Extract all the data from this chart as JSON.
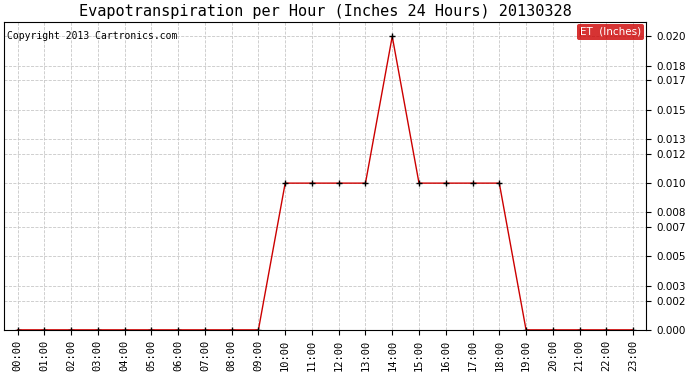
{
  "title": "Evapotranspiration per Hour (Inches 24 Hours) 20130328",
  "copyright": "Copyright 2013 Cartronics.com",
  "legend_label": "ET  (Inches)",
  "legend_bg": "#cc0000",
  "legend_fg": "#ffffff",
  "line_color": "#cc0000",
  "marker_color": "#000000",
  "bg_color": "#ffffff",
  "grid_color": "#c8c8c8",
  "hours": [
    0,
    1,
    2,
    3,
    4,
    5,
    6,
    7,
    8,
    9,
    10,
    11,
    12,
    13,
    14,
    15,
    16,
    17,
    18,
    19,
    20,
    21,
    22,
    23
  ],
  "values": [
    0.0,
    0.0,
    0.0,
    0.0,
    0.0,
    0.0,
    0.0,
    0.0,
    0.0,
    0.0,
    0.01,
    0.01,
    0.01,
    0.01,
    0.02,
    0.01,
    0.01,
    0.01,
    0.01,
    0.0,
    0.0,
    0.0,
    0.0,
    0.0
  ],
  "ylim": [
    0.0,
    0.021
  ],
  "yticks": [
    0.0,
    0.002,
    0.003,
    0.005,
    0.007,
    0.008,
    0.01,
    0.012,
    0.013,
    0.015,
    0.017,
    0.018,
    0.02
  ],
  "title_fontsize": 11,
  "tick_fontsize": 7.5,
  "copyright_fontsize": 7,
  "legend_fontsize": 7.5
}
